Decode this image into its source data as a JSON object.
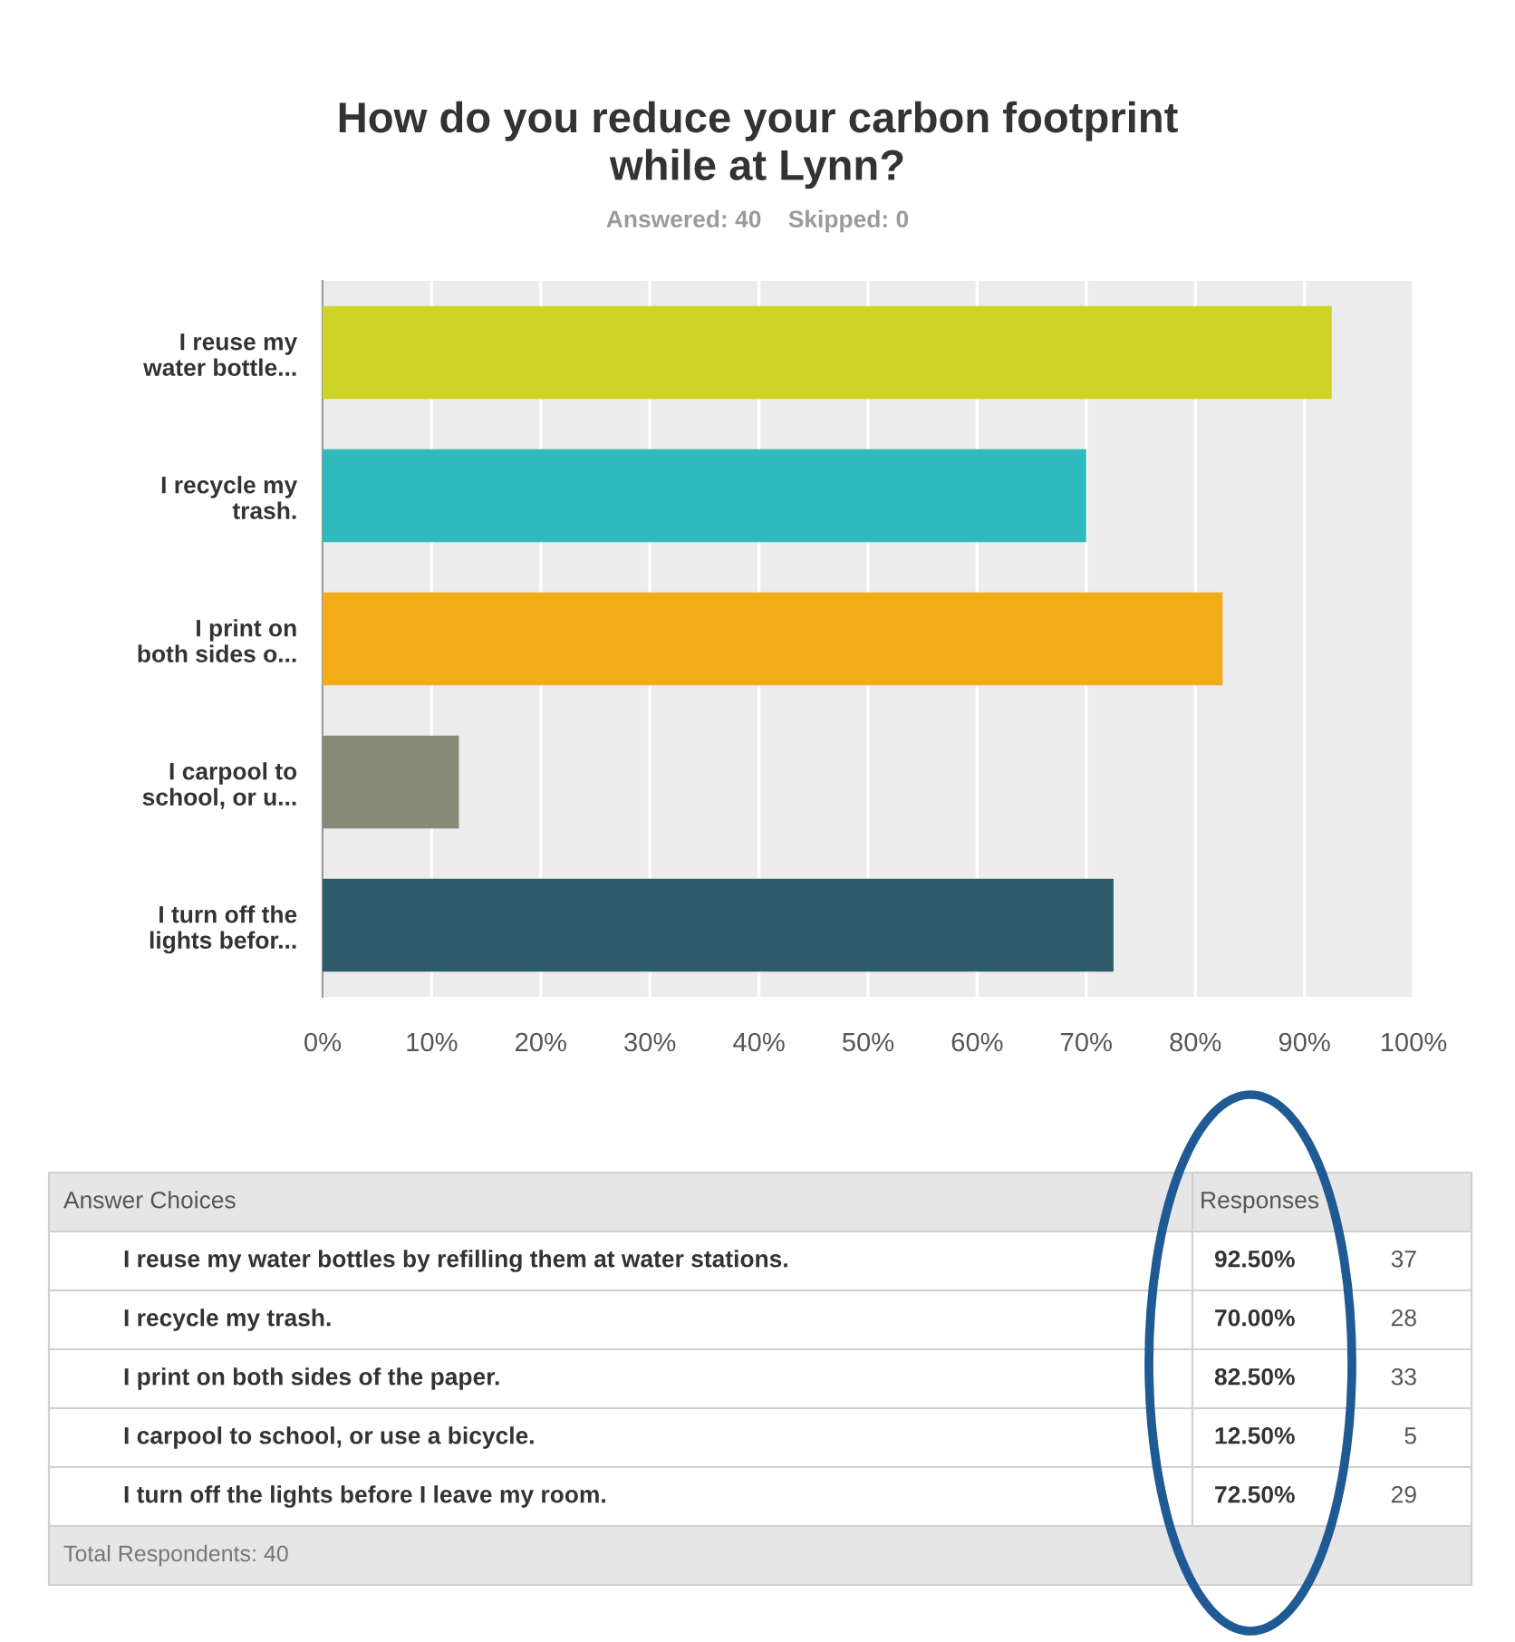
{
  "chart_data": {
    "type": "bar",
    "orientation": "horizontal",
    "title": "How do you reduce your carbon footprint\nwhile at Lynn?",
    "subtitle": "Answered: 40    Skipped: 0",
    "categories": [
      "I reuse my\nwater bottle...",
      "I recycle my\ntrash.",
      "I print on\nboth sides o...",
      "I carpool to\nschool, or u...",
      "I turn off the\nlights befor..."
    ],
    "values": [
      92.5,
      70.0,
      82.5,
      12.5,
      72.5
    ],
    "colors": [
      "#cdd425",
      "#2fbabd",
      "#f2ac1a",
      "#878a77",
      "#2d5b69"
    ],
    "xlim": [
      0,
      100
    ],
    "xticks": [
      {
        "value": 0,
        "label": "0%"
      },
      {
        "value": 10,
        "label": "10%"
      },
      {
        "value": 20,
        "label": "20%"
      },
      {
        "value": 30,
        "label": "30%"
      },
      {
        "value": 40,
        "label": "40%"
      },
      {
        "value": 50,
        "label": "50%"
      },
      {
        "value": 60,
        "label": "60%"
      },
      {
        "value": 70,
        "label": "70%"
      },
      {
        "value": 80,
        "label": "80%"
      },
      {
        "value": 90,
        "label": "90%"
      },
      {
        "value": 100,
        "label": "100%"
      }
    ],
    "grid": "x",
    "annotations": [
      "Answer Choices",
      "Responses",
      "I reuse my water bottles by refilling them at water stations.",
      "I recycle my trash.",
      "I print on both sides of the paper.",
      "I carpool to school, or use a bicycle.",
      "I turn off the lights before I leave my room.",
      "92.50%",
      "70.00%",
      "82.50%",
      "12.50%",
      "72.50%",
      "37",
      "28",
      "33",
      "5",
      "29",
      "Total Respondents: 40"
    ]
  }
}
